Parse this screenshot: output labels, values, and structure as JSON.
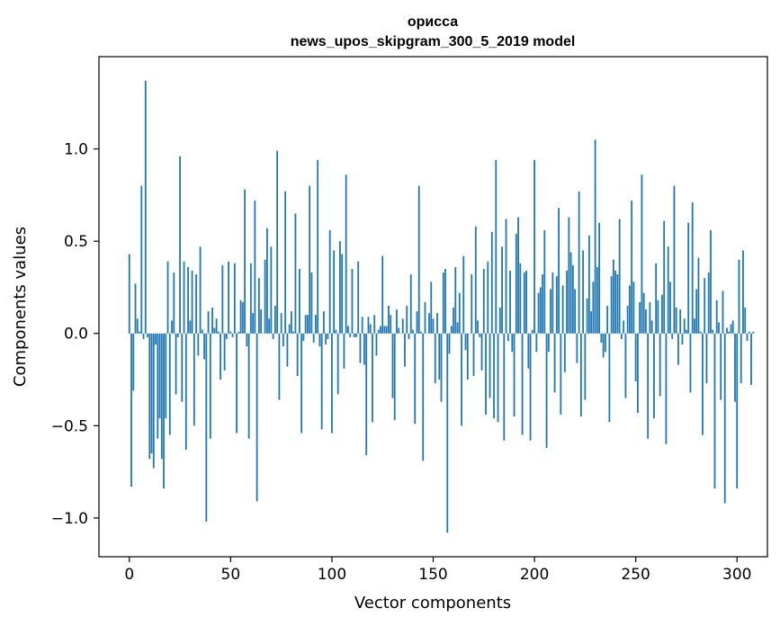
{
  "chart_data": {
    "type": "bar",
    "title": "орисса",
    "subtitle": "news_upos_skipgram_300_5_2019 model",
    "xlabel": "Vector components",
    "ylabel": "Components values",
    "xlim": [
      -15,
      315
    ],
    "ylim": [
      -1.21,
      1.5
    ],
    "xticks": [
      0,
      50,
      100,
      150,
      200,
      250,
      300
    ],
    "xtick_labels": [
      "0",
      "50",
      "100",
      "150",
      "200",
      "250",
      "300"
    ],
    "yticks": [
      -1.0,
      -0.5,
      0.0,
      0.5,
      1.0
    ],
    "ytick_labels": [
      "−1.0",
      "−0.5",
      "0.0",
      "0.5",
      "1.0"
    ],
    "bar_color": "#1f77b4",
    "x_start": 0,
    "values": [
      0.43,
      -0.83,
      -0.31,
      0.27,
      0.08,
      0.01,
      0.8,
      -0.03,
      1.37,
      -0.02,
      -0.68,
      -0.65,
      -0.73,
      -0.06,
      -0.57,
      -0.46,
      -0.68,
      -0.84,
      -0.46,
      0.39,
      -0.55,
      0.07,
      0.33,
      -0.33,
      -0.02,
      0.96,
      -0.37,
      0.39,
      -0.63,
      0.36,
      0.07,
      0.34,
      -0.5,
      0.32,
      -0.12,
      0.47,
      0.02,
      -0.14,
      -1.02,
      0.12,
      -0.57,
      0.14,
      0.03,
      0.08,
      0.01,
      -0.25,
      0.37,
      -0.2,
      -0.03,
      0.39,
      0.01,
      -0.02,
      0.38,
      -0.54,
      0.01,
      0.18,
      0.17,
      0.78,
      -0.07,
      -0.57,
      0.38,
      0.11,
      0.72,
      -0.91,
      0.3,
      0.13,
      0.0,
      0.4,
      0.57,
      0.08,
      0.47,
      -0.03,
      0.15,
      0.99,
      -0.36,
      0.11,
      -0.07,
      0.77,
      -0.18,
      0.05,
      0.12,
      0.01,
      0.65,
      -0.23,
      0.35,
      -0.54,
      -0.04,
      0.1,
      0.1,
      0.8,
      0.33,
      -0.05,
      0.1,
      0.94,
      -0.07,
      -0.52,
      0.12,
      -0.06,
      -0.03,
      0.56,
      -0.54,
      0.45,
      0.02,
      -0.33,
      0.5,
      0.43,
      -0.19,
      0.86,
      0.04,
      -0.02,
      0.35,
      -0.02,
      -0.02,
      0.39,
      -0.16,
      0.09,
      -0.17,
      -0.66,
      0.09,
      0.05,
      -0.48,
      0.1,
      -0.12,
      0.02,
      0.04,
      0.42,
      0.04,
      0.04,
      0.15,
      0.1,
      -0.35,
      -0.47,
      0.13,
      0.03,
      0.0,
      0.08,
      -0.18,
      0.15,
      -0.03,
      0.32,
      0.02,
      -0.49,
      0.12,
      0.8,
      0.01,
      -0.69,
      0.17,
      0.0,
      0.11,
      0.28,
      0.08,
      -0.27,
      0.11,
      -0.25,
      -0.37,
      0.33,
      0.35,
      -1.08,
      -0.11,
      0.04,
      0.14,
      0.36,
      0.06,
      0.22,
      -0.5,
      0.42,
      -0.09,
      -0.25,
      0.0,
      0.32,
      -0.23,
      0.58,
      0.07,
      -0.02,
      -0.2,
      0.35,
      -0.44,
      0.39,
      -0.35,
      0.55,
      -0.46,
      0.94,
      -0.48,
      0.14,
      0.47,
      -0.58,
      0.62,
      -0.04,
      0.34,
      -0.1,
      -0.45,
      0.54,
      0.63,
      0.38,
      -0.55,
      0.33,
      0.34,
      -0.19,
      -0.58,
      0.02,
      0.94,
      -0.1,
      0.22,
      0.25,
      0.32,
      0.56,
      -0.62,
      -0.1,
      0.24,
      0.33,
      -0.32,
      0.31,
      0.68,
      -0.44,
      0.26,
      -0.21,
      0.34,
      0.63,
      0.44,
      0.37,
      0.24,
      -0.16,
      0.77,
      -0.45,
      0.45,
      -0.36,
      0.19,
      0.53,
      0.12,
      0.28,
      1.05,
      0.36,
      0.6,
      -0.05,
      -0.13,
      -0.1,
      0.15,
      -0.48,
      0.31,
      0.4,
      0.34,
      0.32,
      0.62,
      -0.03,
      0.07,
      -0.35,
      0.15,
      0.26,
      0.72,
      0.28,
      -0.26,
      -0.43,
      0.17,
      0.86,
      0.22,
      0.13,
      -0.57,
      0.17,
      0.07,
      -0.46,
      0.38,
      0.18,
      -0.34,
      0.21,
      0.61,
      -0.6,
      0.47,
      0.28,
      -0.03,
      0.8,
      0.14,
      -0.17,
      0.13,
      -0.06,
      0.08,
      0.02,
      0.6,
      -0.32,
      0.71,
      0.08,
      0.24,
      0.41,
      0.01,
      -0.55,
      0.3,
      -0.27,
      0.33,
      0.56,
      0.02,
      -0.84,
      0.18,
      0.06,
      -0.36,
      0.23,
      -0.92,
      0.03,
      0.01,
      0.05,
      0.07,
      -0.37,
      -0.84,
      0.4,
      -0.27,
      0.45,
      0.14,
      -0.04,
      0.01,
      -0.28,
      0.01
    ]
  }
}
